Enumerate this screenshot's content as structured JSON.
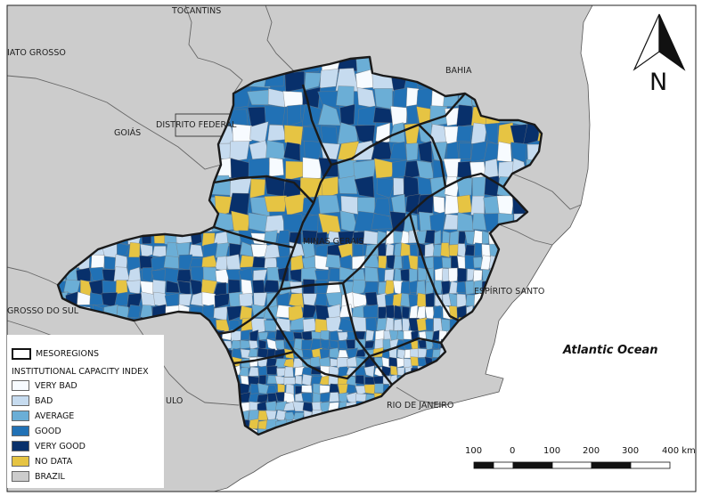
{
  "ocean_label": "Atlantic Ocean",
  "north_label": "N",
  "places": {
    "tocantins": "TOCANTINS",
    "mato_grosso": "IATO GROSSO",
    "bahia": "BAHIA",
    "goias": "GOIÁS",
    "distrito_federal": "DISTRITO FEDERAL",
    "minas_gerais": "MINAS GERAIS",
    "espirito_santo": "ESPÍRITO SANTO",
    "mato_grosso_do_sul": "GROSSO DO SUL",
    "sao_paulo": "ULO",
    "rio_de_janeiro": "RIO DE JANEIRO"
  },
  "legend": {
    "mesoregions": "MESOREGIONS",
    "title": "INSTITUTIONAL CAPACITY INDEX",
    "items": [
      {
        "label": "VERY BAD",
        "color": "#f7fbff"
      },
      {
        "label": "BAD",
        "color": "#c6dbef"
      },
      {
        "label": "AVERAGE",
        "color": "#6baed6"
      },
      {
        "label": "GOOD",
        "color": "#2171b5"
      },
      {
        "label": "VERY GOOD",
        "color": "#08306b"
      },
      {
        "label": "NO DATA",
        "color": "#e6c443"
      }
    ],
    "brazil": {
      "label": "BRAZIL",
      "color": "#cccccc"
    }
  },
  "scale_bar": {
    "labels": [
      "100",
      "0",
      "100",
      "200",
      "300",
      "400 km"
    ]
  },
  "colors": {
    "land": "#cccccc",
    "sea": "#ffffff",
    "border": "#666666",
    "mesoregion_border": "#1a1a1a"
  }
}
